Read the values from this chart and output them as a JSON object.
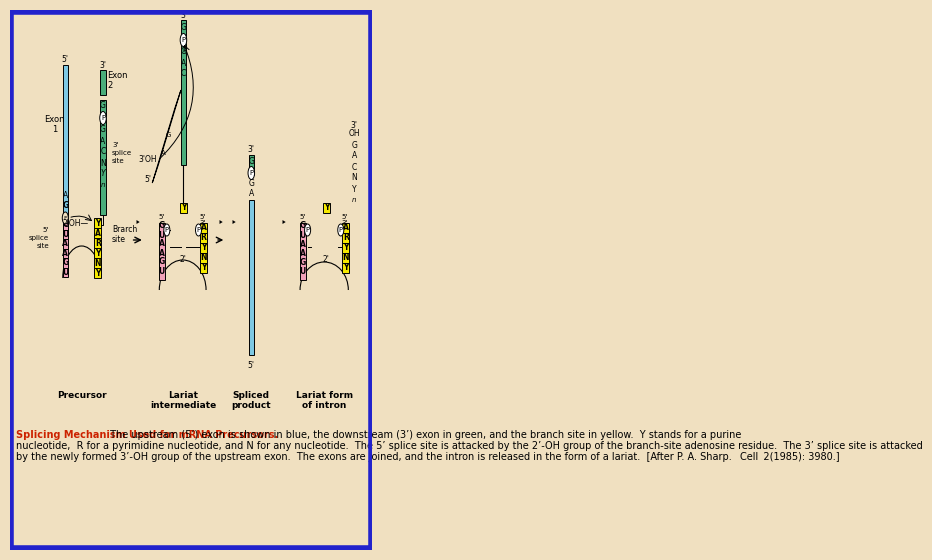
{
  "bg_color": "#f0e0c0",
  "border_color": "#2222cc",
  "border_width": 4,
  "blue": "#7ec8e3",
  "green": "#4aad7a",
  "yellow": "#f5e800",
  "pink": "#f0a0b8",
  "white": "#ffffff",
  "black": "#000000",
  "red_bold": "#cc2200",
  "caption_bold": "Splicing Mechanism Used for m​RNA Precursors.",
  "caption_rest": " The upstream (5’) exon is shown in blue, the downstream (3’) exon in green, and the branch site in yellow. Y stands for a purine nucleotide, R for a pyrimidine nucleotide, and N for any nucleotide. The 5’ splice site is attacked by the 2’-OH group of the branch-site adenosine residue. The 3’ splice site is attacked by the newly formed 3’-OH group of the upstream exon. The exons are joined, and the intron is released in the form of a lariat. [After P. A. Sharp. Cell 2(1985): 3980.]"
}
